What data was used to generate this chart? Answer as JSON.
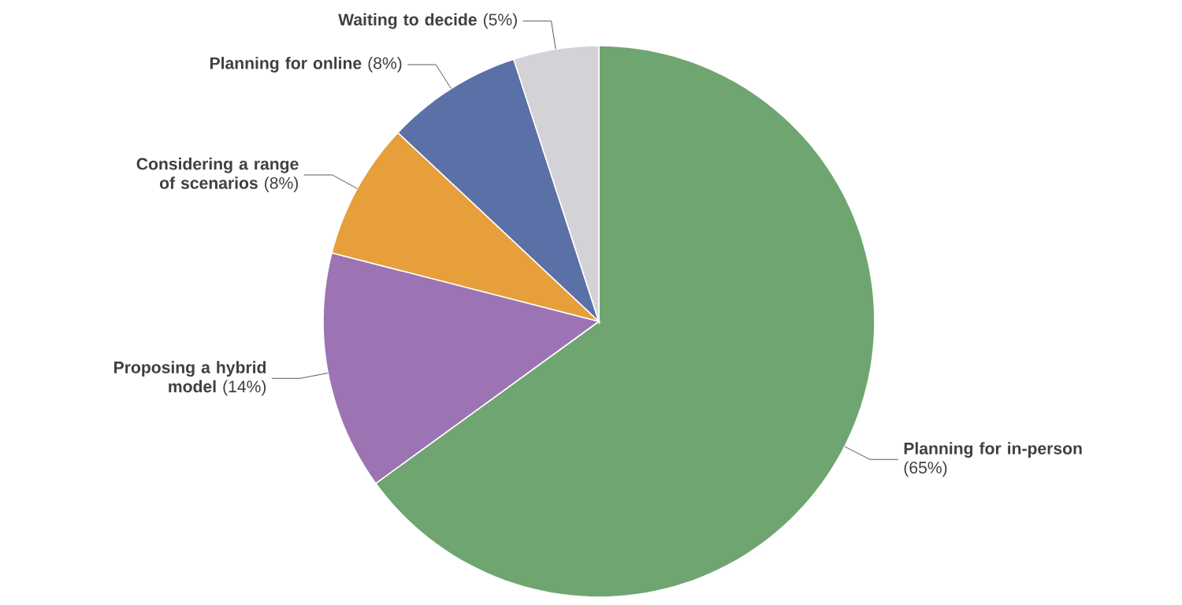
{
  "chart_data": {
    "type": "pie",
    "categories": [
      "Planning for in-person",
      "Proposing a hybrid model",
      "Considering a range of scenarios",
      "Planning for online",
      "Waiting to decide"
    ],
    "values": [
      65,
      14,
      8,
      8,
      5
    ],
    "value_labels": [
      "(65%)",
      "(14%)",
      "(8%)",
      "(8%)",
      "(5%)"
    ],
    "colors": [
      "#6fa571",
      "#9c74b3",
      "#e69f3a",
      "#5b70a6",
      "#d3d3d7"
    ]
  }
}
